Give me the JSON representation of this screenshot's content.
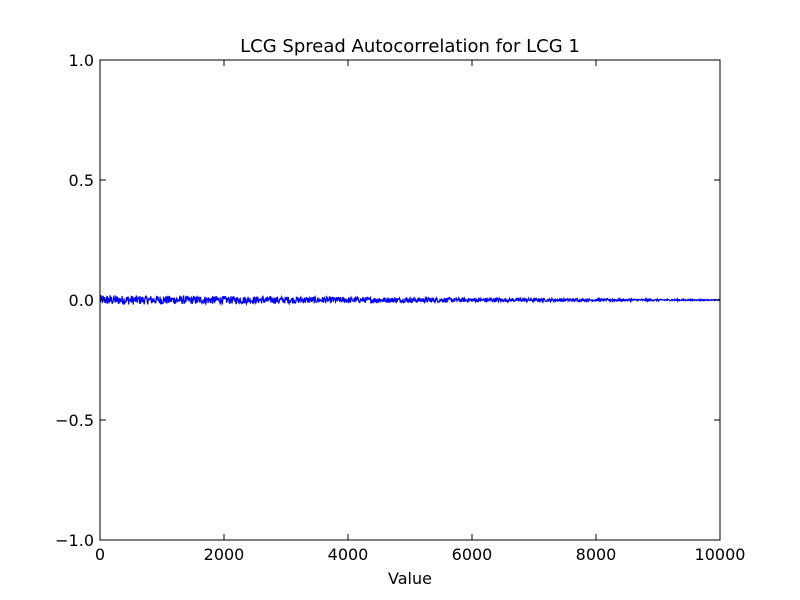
{
  "chart_data": {
    "type": "line",
    "title": "LCG Spread Autocorrelation for LCG 1",
    "xlabel": "Value",
    "ylabel": "",
    "xlim": [
      0,
      10000
    ],
    "ylim": [
      -1.0,
      1.0
    ],
    "x_ticks": [
      0,
      2000,
      4000,
      6000,
      8000,
      10000
    ],
    "y_ticks": [
      -1.0,
      -0.5,
      0.0,
      0.5,
      1.0
    ],
    "x_tick_labels": [
      "0",
      "2000",
      "4000",
      "6000",
      "8000",
      "10000"
    ],
    "y_tick_labels": [
      "−1.0",
      "−0.5",
      "0.0",
      "0.5",
      "1.0"
    ],
    "grid": false,
    "legend": "none",
    "series": [
      {
        "color": "#0000ff",
        "x_start": 0,
        "x_end": 10000,
        "x_step": 1,
        "mean": 0.0,
        "amplitude_at_start": 0.02,
        "amplitude_at_end": 0.002,
        "description_values": [
          {
            "x": 0,
            "y_min": -0.02,
            "y_max": 0.02
          },
          {
            "x": 2000,
            "y_min": -0.025,
            "y_max": 0.02
          },
          {
            "x": 4000,
            "y_min": -0.015,
            "y_max": 0.015
          },
          {
            "x": 6000,
            "y_min": -0.01,
            "y_max": 0.01
          },
          {
            "x": 8000,
            "y_min": -0.006,
            "y_max": 0.006
          },
          {
            "x": 10000,
            "y_min": -0.002,
            "y_max": 0.002
          }
        ]
      }
    ]
  }
}
